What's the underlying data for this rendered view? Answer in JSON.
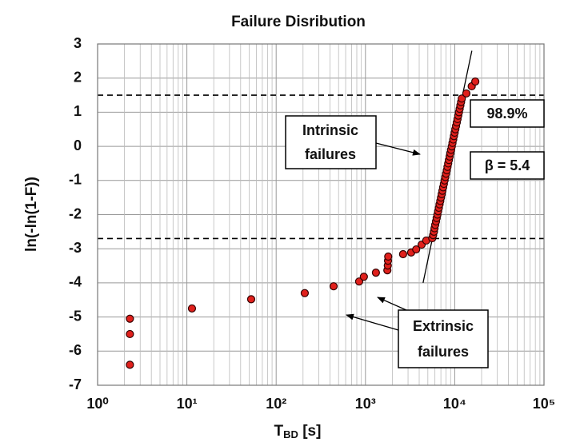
{
  "chart_data": {
    "type": "scatter",
    "title": "Failure Disribution",
    "ylabel": "ln(-ln(1-F))",
    "xlabel": {
      "symbol": "T",
      "subscript": "BD",
      "unit": " [s]"
    },
    "xlog": true,
    "grid": true,
    "minor_grid": true,
    "xlim": [
      1,
      100000
    ],
    "ylim": [
      -7,
      3
    ],
    "xticks": [
      {
        "value": 1,
        "label": "10⁰"
      },
      {
        "value": 10,
        "label": "10¹"
      },
      {
        "value": 100,
        "label": "10²"
      },
      {
        "value": 1000,
        "label": "10³"
      },
      {
        "value": 10000,
        "label": "10⁴"
      },
      {
        "value": 100000,
        "label": "10⁵"
      }
    ],
    "yticks": [
      3,
      2,
      1,
      0,
      -1,
      -2,
      -3,
      -4,
      -5,
      -6,
      -7
    ],
    "series": [
      {
        "color": "#e0201c",
        "x": [
          2.3,
          2.3,
          2.3,
          11.4,
          52.5,
          209,
          440,
          850,
          960,
          1310,
          1760,
          1780,
          1790,
          1800,
          2640,
          3250,
          3700,
          4260,
          4800,
          5600,
          5730,
          5850,
          5940,
          6050,
          6170,
          6280,
          6400,
          6520,
          6640,
          6760,
          6890,
          7020,
          7150,
          7280,
          7420,
          7560,
          7700,
          7850,
          8000,
          8150,
          8300,
          8450,
          8610,
          8770,
          8930,
          9100,
          9270,
          9440,
          9620,
          9800,
          9980,
          10160,
          10350,
          10550,
          10750,
          10950,
          11150,
          11360,
          11570,
          11780,
          12000,
          13500,
          15500,
          17000
        ],
        "y": [
          -5.05,
          -5.5,
          -6.4,
          -4.75,
          -4.48,
          -4.3,
          -4.1,
          -3.96,
          -3.82,
          -3.7,
          -3.63,
          -3.49,
          -3.35,
          -3.23,
          -3.16,
          -3.11,
          -3.02,
          -2.88,
          -2.76,
          -2.69,
          -2.6,
          -2.5,
          -2.4,
          -2.3,
          -2.2,
          -2.1,
          -2.0,
          -1.9,
          -1.8,
          -1.7,
          -1.6,
          -1.5,
          -1.4,
          -1.3,
          -1.2,
          -1.1,
          -1.0,
          -0.9,
          -0.8,
          -0.7,
          -0.6,
          -0.5,
          -0.4,
          -0.3,
          -0.2,
          -0.1,
          0,
          0.1,
          0.2,
          0.3,
          0.4,
          0.5,
          0.6,
          0.7,
          0.8,
          0.9,
          1.0,
          1.1,
          1.2,
          1.3,
          1.4,
          1.55,
          1.76,
          1.9
        ]
      }
    ],
    "fit_line": {
      "x": [
        4420,
        15560
      ],
      "y": [
        -4,
        2.8
      ],
      "color": "#000000"
    },
    "hlines": [
      1.5,
      -2.7
    ],
    "annotations": {
      "percent": "98.9%",
      "beta": "β = 5.4",
      "intrinsic": [
        "Intrinsic",
        "failures"
      ],
      "extrinsic": [
        "Extrinsic",
        "failures"
      ]
    }
  }
}
